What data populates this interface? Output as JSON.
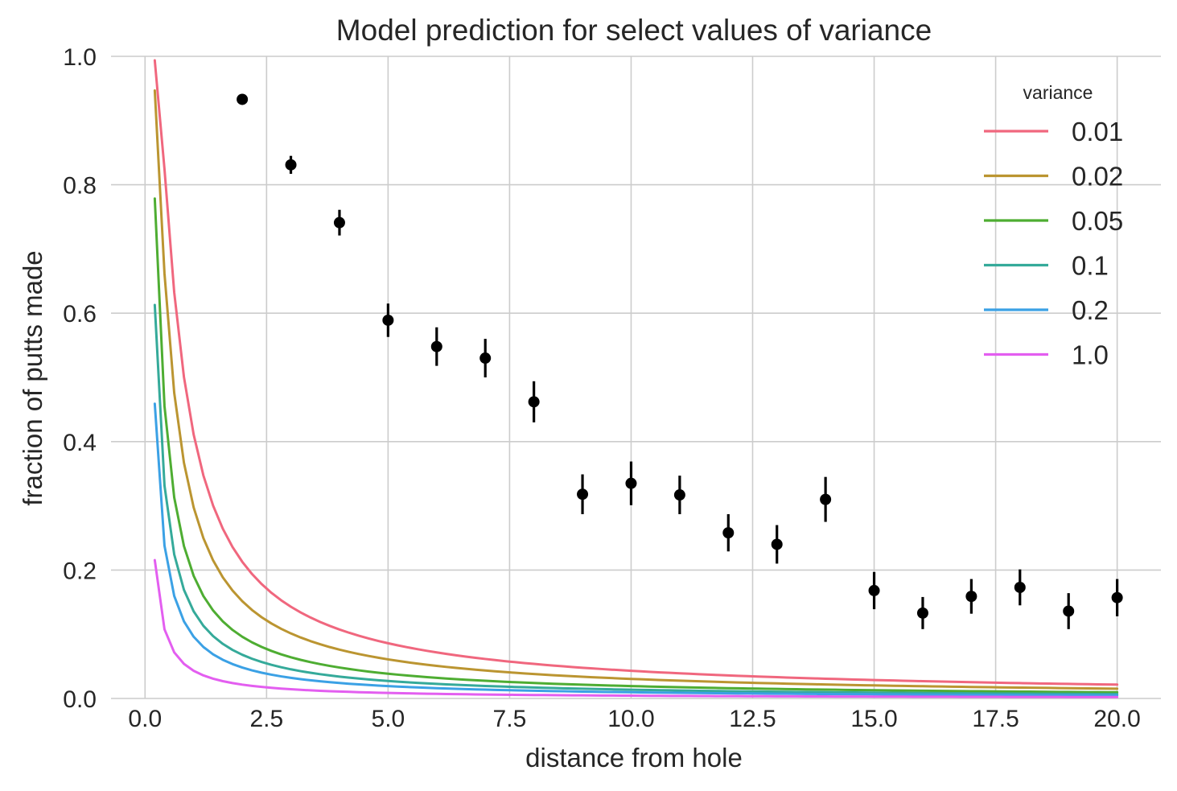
{
  "chart_data": {
    "type": "line",
    "title": "Model prediction for select values of variance",
    "xlabel": "distance from hole",
    "ylabel": "fraction of putts made",
    "xlim": [
      -0.7,
      20.9
    ],
    "ylim": [
      0,
      1
    ],
    "x_ticks": [
      "0.0",
      "2.5",
      "5.0",
      "7.5",
      "10.0",
      "12.5",
      "15.0",
      "17.5",
      "20.0"
    ],
    "y_ticks": [
      "0.0",
      "0.2",
      "0.4",
      "0.6",
      "0.8",
      "1.0"
    ],
    "grid": true,
    "legend": {
      "title": "variance",
      "position": "top-right"
    },
    "model": {
      "formula": "2*Phi(arcsin(0.054/x)/sqrt(variance)) - 1",
      "x_range": [
        0.2,
        20
      ],
      "samples": 100
    },
    "series": [
      {
        "name": "0.01",
        "variance": 0.01,
        "color": "#f0677e"
      },
      {
        "name": "0.02",
        "variance": 0.02,
        "color": "#bb9531"
      },
      {
        "name": "0.05",
        "variance": 0.05,
        "color": "#4ead32"
      },
      {
        "name": "0.1",
        "variance": 0.1,
        "color": "#35aa9a"
      },
      {
        "name": "0.2",
        "variance": 0.2,
        "color": "#3ba1e5"
      },
      {
        "name": "1.0",
        "variance": 1.0,
        "color": "#e35ef0"
      }
    ],
    "observed": {
      "color": "#000000",
      "x": [
        2,
        3,
        4,
        5,
        6,
        7,
        8,
        9,
        10,
        11,
        12,
        13,
        14,
        15,
        16,
        17,
        18,
        19,
        20
      ],
      "y": [
        0.933,
        0.831,
        0.741,
        0.589,
        0.548,
        0.53,
        0.462,
        0.318,
        0.335,
        0.317,
        0.258,
        0.24,
        0.31,
        0.168,
        0.133,
        0.159,
        0.173,
        0.136,
        0.157
      ],
      "err": [
        0.004,
        0.014,
        0.02,
        0.026,
        0.03,
        0.03,
        0.032,
        0.031,
        0.034,
        0.03,
        0.029,
        0.03,
        0.035,
        0.029,
        0.025,
        0.027,
        0.028,
        0.028,
        0.029
      ]
    }
  }
}
